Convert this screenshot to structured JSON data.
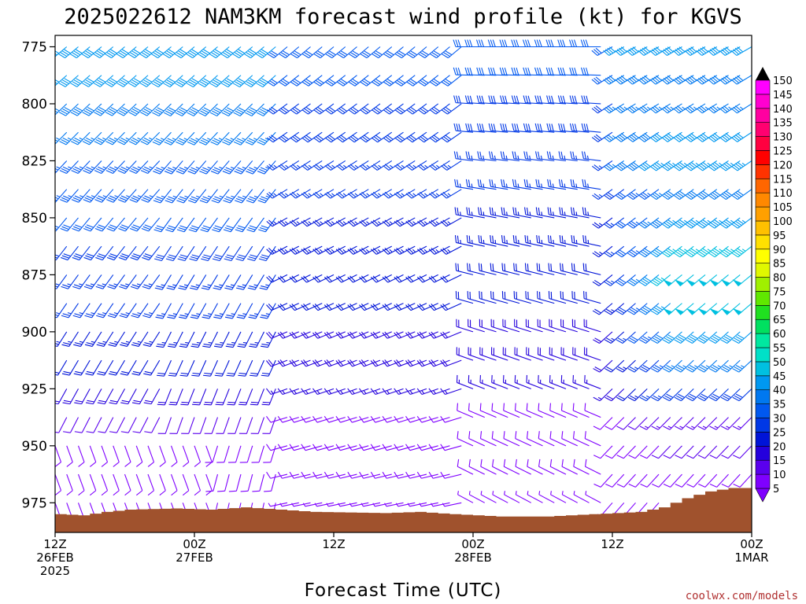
{
  "chart_data": {
    "type": "wind-barb-timeseries",
    "title": "2025022612 NAM3KM forecast wind profile (kt) for KGVS",
    "xlabel": "Forecast Time (UTC)",
    "ylabel": "",
    "credit": "coolwx.com/models",
    "y_ticks": [
      775,
      800,
      825,
      850,
      875,
      900,
      925,
      950,
      975
    ],
    "ylim": [
      988,
      770
    ],
    "x_tick_labels": [
      {
        "hour": 0,
        "lines": [
          "12Z",
          "26FEB",
          "2025"
        ]
      },
      {
        "hour": 12,
        "lines": [
          "00Z",
          "27FEB"
        ]
      },
      {
        "hour": 24,
        "lines": [
          "12Z"
        ]
      },
      {
        "hour": 36,
        "lines": [
          "00Z",
          "28FEB"
        ]
      },
      {
        "hour": 48,
        "lines": [
          "12Z"
        ]
      },
      {
        "hour": 60,
        "lines": [
          "00Z",
          "1MAR"
        ]
      }
    ],
    "xlim_hours": [
      0,
      60
    ],
    "pressure_levels": [
      775,
      787.5,
      800,
      812.5,
      825,
      837.5,
      850,
      862.5,
      875,
      887.5,
      900,
      912.5,
      925,
      937.5,
      950,
      962.5,
      975
    ],
    "barb_times_hours": [
      0,
      1,
      2,
      3,
      4,
      5,
      6,
      7,
      8,
      9,
      10,
      11,
      12,
      13,
      14,
      15,
      16,
      17,
      18,
      19,
      20,
      21,
      22,
      23,
      24,
      25,
      26,
      27,
      28,
      29,
      30,
      31,
      32,
      33,
      34,
      35,
      36,
      37,
      38,
      39,
      40,
      41,
      42,
      43,
      44,
      45,
      46,
      47,
      48,
      49,
      50,
      51,
      52,
      53,
      54,
      55,
      56,
      57,
      58,
      59,
      60
    ],
    "surface_pressure": [
      {
        "hour": 0,
        "p": 980
      },
      {
        "hour": 2,
        "p": 980.5
      },
      {
        "hour": 4,
        "p": 979
      },
      {
        "hour": 6,
        "p": 978
      },
      {
        "hour": 10,
        "p": 977.5
      },
      {
        "hour": 13,
        "p": 978
      },
      {
        "hour": 16,
        "p": 977
      },
      {
        "hour": 19,
        "p": 978
      },
      {
        "hour": 22,
        "p": 979
      },
      {
        "hour": 28,
        "p": 979.5
      },
      {
        "hour": 31,
        "p": 979
      },
      {
        "hour": 34,
        "p": 980
      },
      {
        "hour": 38,
        "p": 981
      },
      {
        "hour": 42,
        "p": 981
      },
      {
        "hour": 46,
        "p": 980
      },
      {
        "hour": 50,
        "p": 979
      },
      {
        "hour": 52,
        "p": 977
      },
      {
        "hour": 54,
        "p": 973
      },
      {
        "hour": 56,
        "p": 970
      },
      {
        "hour": 58,
        "p": 968.5
      },
      {
        "hour": 60,
        "p": 968.5
      }
    ],
    "colorbar": {
      "levels": [
        5,
        10,
        15,
        20,
        25,
        30,
        35,
        40,
        45,
        50,
        55,
        60,
        65,
        70,
        75,
        80,
        85,
        90,
        95,
        100,
        105,
        110,
        115,
        120,
        125,
        130,
        135,
        140,
        145,
        150
      ],
      "colors": [
        "#7f00ff",
        "#5a00ee",
        "#2400dd",
        "#0014d8",
        "#0038e6",
        "#0058f0",
        "#0078f0",
        "#0098f0",
        "#00c0e0",
        "#00e0c8",
        "#00e8a0",
        "#00e060",
        "#20e020",
        "#60e800",
        "#a0f000",
        "#e0f800",
        "#ffff00",
        "#ffe000",
        "#ffc000",
        "#ffa000",
        "#ff8800",
        "#ff6600",
        "#ff3300",
        "#ff0000",
        "#ff0040",
        "#ff0070",
        "#ff00a0",
        "#ff00d0",
        "#ff00ff"
      ],
      "units": "kt"
    },
    "colors": {
      "ground": "#a0522d",
      "frame": "#000000"
    }
  }
}
